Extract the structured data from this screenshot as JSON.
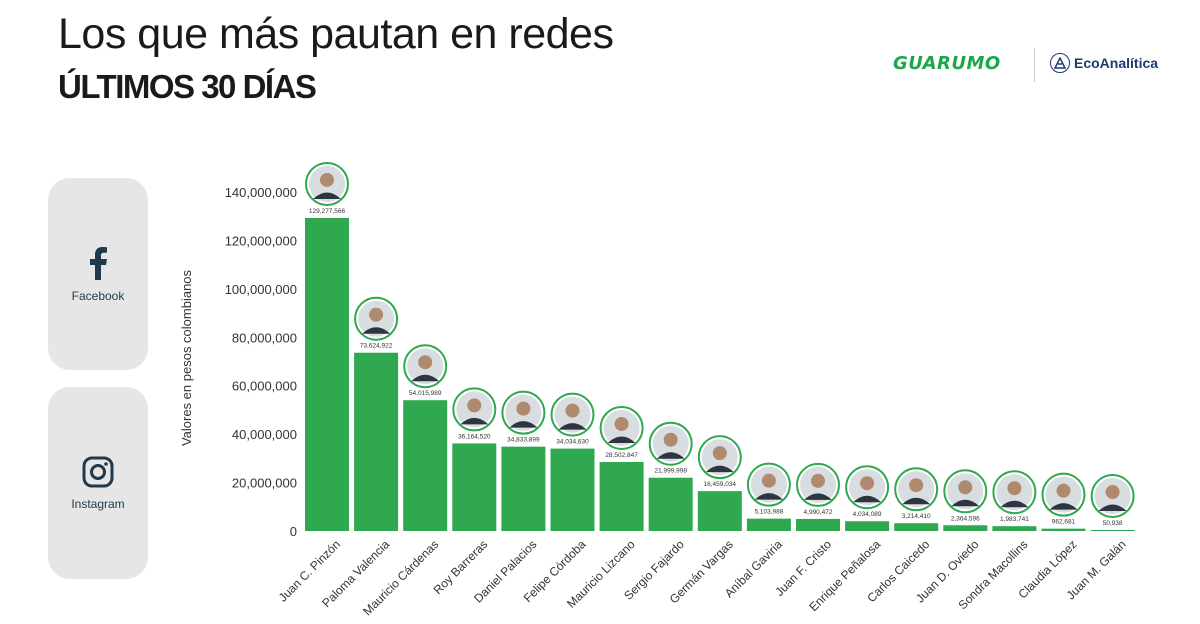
{
  "header": {
    "title": "Los que más pautan en redes",
    "subtitle": "ÚLTIMOS 30 DÍAS"
  },
  "logos": {
    "guarumo": "GUARUMO",
    "ecoanalitica": "EcoAnalítica"
  },
  "platforms": {
    "facebook": "Facebook",
    "instagram": "Instagram"
  },
  "colors": {
    "bar": "#2fa84f",
    "avatar_ring": "#2fa84f",
    "grid": "#d9d9d9"
  },
  "chart_data": {
    "type": "bar",
    "ylabel": "Valores en pesos colombianos",
    "ylim": [
      0,
      140000000
    ],
    "yticks": [
      0,
      20000000,
      40000000,
      60000000,
      80000000,
      100000000,
      120000000,
      140000000
    ],
    "ytick_labels": [
      "0",
      "20,000,000",
      "40,000,000",
      "60,000,000",
      "80,000,000",
      "100,000,000",
      "120,000,000",
      "140,000,000"
    ],
    "categories": [
      "Juan C. Pinzón",
      "Paloma Valencia",
      "Mauricio Cárdenas",
      "Roy Barreras",
      "Daniel Palacios",
      "Felipe Córdoba",
      "Mauricio Lizcano",
      "Sergio Fajardo",
      "Germán Vargas",
      "Aníbal Gaviria",
      "Juan F. Cristo",
      "Enrique Peñalosa",
      "Carlos Caicedo",
      "Juan D. Oviedo",
      "Sondra Macollins",
      "Claudia López",
      "Juan M. Galán"
    ],
    "values": [
      129277566,
      73624922,
      54015989,
      36164520,
      34833899,
      34034630,
      28502847,
      21999998,
      16459034,
      5103988,
      4990472,
      4034089,
      3214410,
      2364596,
      1983741,
      962681,
      50938
    ],
    "value_labels": [
      "129,277,566",
      "73,624,922",
      "54,015,989",
      "36,164,520",
      "34,833,899",
      "34,034,630",
      "28,502,847",
      "21,999,998",
      "16,459,034",
      "5,103,988",
      "4,990,472",
      "4,034,089",
      "3,214,410",
      "2,364,596",
      "1,983,741",
      "962,681",
      "50,938"
    ],
    "grid": false,
    "legend": "none"
  }
}
